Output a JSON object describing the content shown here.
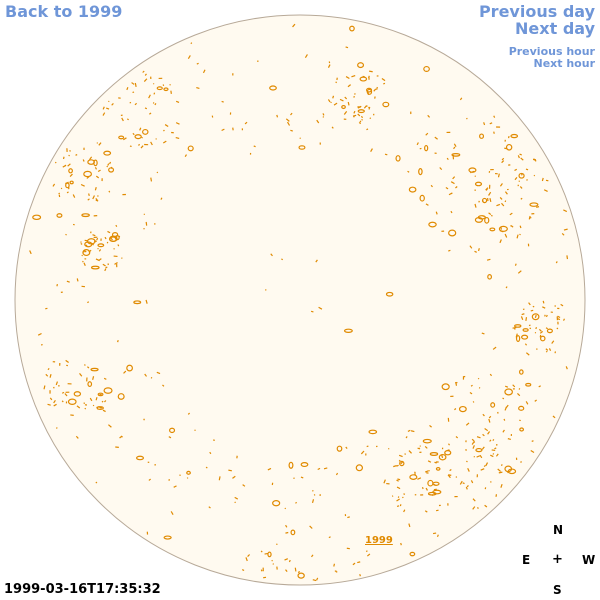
{
  "nav": {
    "back": "Back to 1999",
    "previous_day": "Previous day",
    "next_day": "Next day",
    "previous_hour": "Previous hour",
    "next_hour": "Next hour"
  },
  "disk": {
    "fill_color": "#fffaf0",
    "outline_color": "#b7a998",
    "contour_color": "#e08a00",
    "year_link": "1999"
  },
  "timestamp": "1999-03-16T17:35:32",
  "compass": {
    "north": "N",
    "east": "E",
    "center": "+",
    "west": "W",
    "south": "S"
  }
}
